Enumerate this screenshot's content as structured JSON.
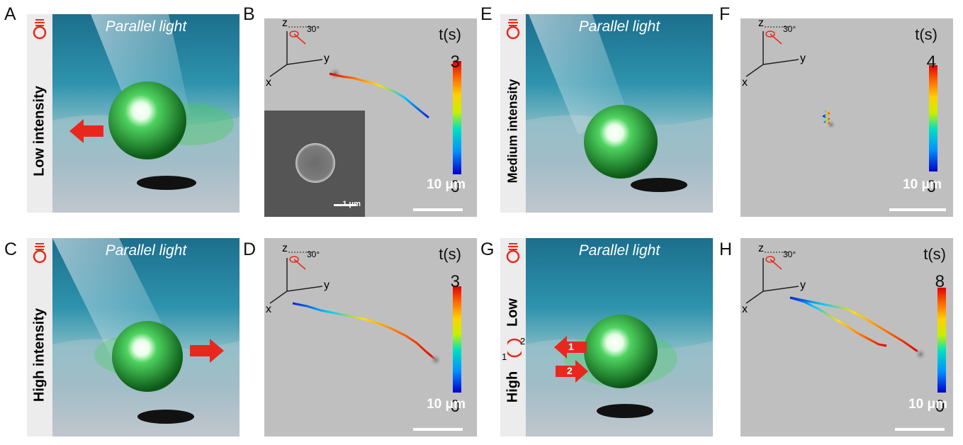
{
  "panels": {
    "A": {
      "label": "A",
      "intensity": "Low intensity",
      "light": "Parallel light"
    },
    "B": {
      "label": "B",
      "time_label": "t(s)",
      "colorbar_max": "3",
      "colorbar_min": "0",
      "scale_bar": "10 μm",
      "inset_scale": "1 μm",
      "axis_z": "z",
      "axis_y": "y",
      "axis_x": "x",
      "angle": "30°"
    },
    "C": {
      "label": "C",
      "intensity": "High intensity",
      "light": "Parallel light"
    },
    "D": {
      "label": "D",
      "time_label": "t(s)",
      "colorbar_max": "3",
      "colorbar_min": "0",
      "scale_bar": "10 μm",
      "axis_z": "z",
      "axis_y": "y",
      "axis_x": "x",
      "angle": "30°"
    },
    "E": {
      "label": "E",
      "intensity": "Medium intensity",
      "light": "Parallel light"
    },
    "F": {
      "label": "F",
      "time_label": "t(s)",
      "colorbar_max": "4",
      "colorbar_min": "0",
      "scale_bar": "10 μm",
      "axis_z": "z",
      "axis_y": "y",
      "axis_x": "x",
      "angle": "30°"
    },
    "G": {
      "label": "G",
      "intensity_high": "High",
      "intensity_low": "Low",
      "cycle_1": "1",
      "cycle_2": "2",
      "arrow_1": "1",
      "arrow_2": "2",
      "light": "Parallel light"
    },
    "H": {
      "label": "H",
      "time_label": "t(s)",
      "colorbar_max": "8",
      "colorbar_min": "0",
      "scale_bar": "10 μm",
      "axis_z": "z",
      "axis_y": "y",
      "axis_x": "x",
      "angle": "30°"
    }
  },
  "colors": {
    "water": "#3a8fa8",
    "sphere": "#2fb84a",
    "arrow": "#e8281e",
    "micro_bg": "#bfbfbf"
  }
}
